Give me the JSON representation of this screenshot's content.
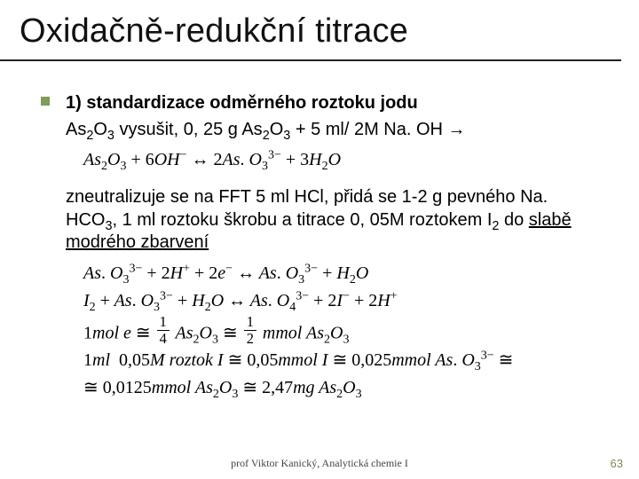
{
  "title": "Oxidačně-redukční titrace",
  "bullet_heading": "1) standardizace odměrného roztoku jodu",
  "line2_a": "As",
  "line2_sub1": "2",
  "line2_b": "O",
  "line2_sub2": "3",
  "line2_c": " vysušit, 0, 25 g As",
  "line2_sub3": "2",
  "line2_d": "O",
  "line2_sub4": "3",
  "line2_e": " + 5 ml/ 2M Na. OH →",
  "eq1": "As₂O₃ + 6OH⁻ ↔ 2As. O₃³⁻ + 3H₂O",
  "para2_a": "zneutralizuje se na FFT 5 ml HCl, přidá se 1-2 g pevného Na. HCO",
  "para2_sub1": "3",
  "para2_b": ", 1 ml roztoku škrobu a titrace 0, 05M roztokem I",
  "para2_sub2": "2",
  "para2_c": " do ",
  "para2_d": "slabě modrého zbarvení",
  "eq2": "As. O₃³⁻ + 2H⁺ + 2e⁻ ↔ As. O₃³⁻ + H₂O",
  "eq3": "I₂ + As. O₃³⁻ + H₂O ↔ As. O₄³⁻ + 2I⁻ + 2H⁺",
  "eq4_pre": "1mol e ≅ ",
  "eq4_f1n": "1",
  "eq4_f1d": "4",
  "eq4_mid1": " As₂O₃ ≅ ",
  "eq4_f2n": "1",
  "eq4_f2d": "2",
  "eq4_mid2": " mmol As₂O₃",
  "eq5_pre": "1ml  0,05M roztok I ≅ 0,05mmol I ≅ 0,025mmol As. O₃³⁻ ≅",
  "eq6_pre": "≅ 0,0125mmol As₂O₃ ≅ 2,47mg As₂O₃",
  "footer": "prof Viktor Kanický, Analytická chemie I",
  "page": "63",
  "colors": {
    "bullet": "#7d9d5a",
    "rule": "#222222",
    "pagenum": "#7d8b54"
  }
}
